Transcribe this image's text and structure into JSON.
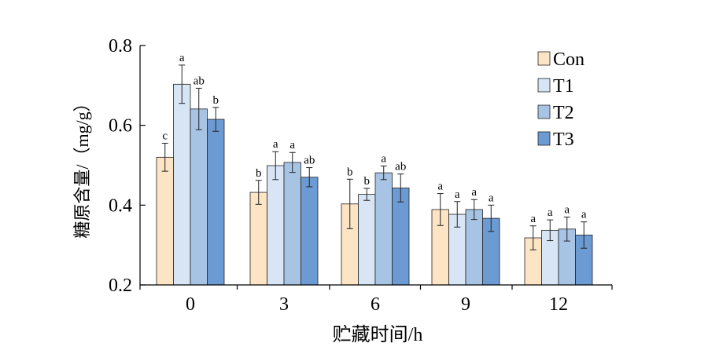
{
  "chart_data": {
    "type": "bar",
    "xlabel": "贮藏时间/h",
    "ylabel": "糖原含量/（mg/g）",
    "ylim": [
      0.2,
      0.8
    ],
    "yticks": [
      "0.2",
      "0.4",
      "0.6",
      "0.8"
    ],
    "categories": [
      "0",
      "3",
      "6",
      "9",
      "12"
    ],
    "legend_position": "top-right",
    "series": [
      {
        "name": "Con",
        "color": "#fce4c4",
        "values": [
          0.52,
          0.432,
          0.403,
          0.389,
          0.318
        ],
        "errors": [
          0.035,
          0.03,
          0.062,
          0.04,
          0.03
        ],
        "labels": [
          "c",
          "b",
          "b",
          "a",
          "a"
        ]
      },
      {
        "name": "T1",
        "color": "#d7e5f5",
        "values": [
          0.703,
          0.499,
          0.427,
          0.377,
          0.337
        ],
        "errors": [
          0.048,
          0.035,
          0.015,
          0.032,
          0.026
        ],
        "labels": [
          "a",
          "a",
          "b",
          "a",
          "a"
        ]
      },
      {
        "name": "T2",
        "color": "#a8c4e5",
        "values": [
          0.641,
          0.507,
          0.481,
          0.389,
          0.34
        ],
        "errors": [
          0.052,
          0.025,
          0.017,
          0.025,
          0.03
        ],
        "labels": [
          "ab",
          "a",
          "a",
          "a",
          "a"
        ]
      },
      {
        "name": "T3",
        "color": "#6b9bd2",
        "values": [
          0.615,
          0.47,
          0.443,
          0.367,
          0.325
        ],
        "errors": [
          0.03,
          0.024,
          0.035,
          0.033,
          0.033
        ],
        "labels": [
          "b",
          "ab",
          "ab",
          "a",
          "a"
        ]
      }
    ]
  }
}
